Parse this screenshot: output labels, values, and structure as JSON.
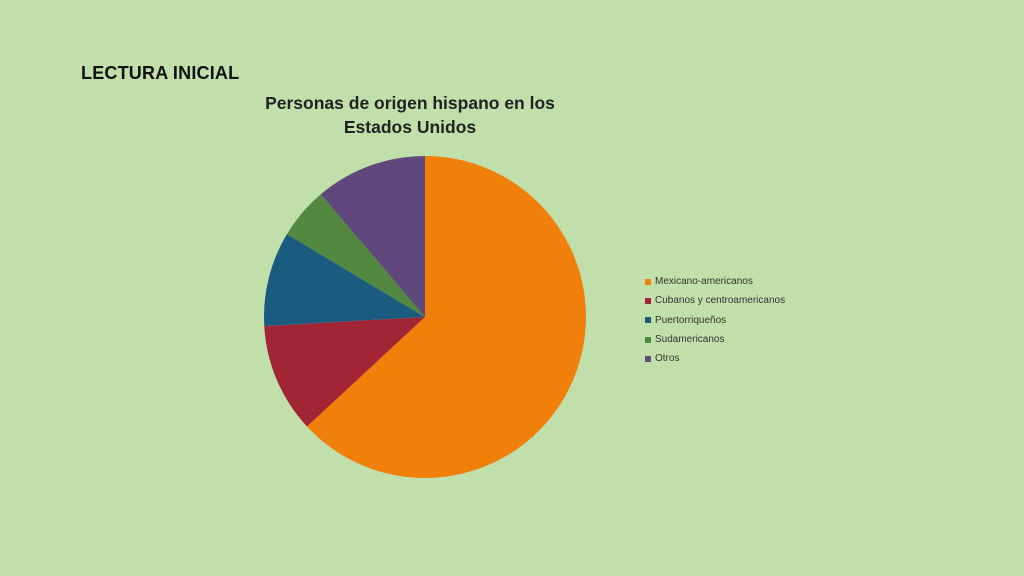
{
  "slide": {
    "heading": "LECTURA INICIAL"
  },
  "chart_data": {
    "type": "pie",
    "title": "Personas de origen hispano en los Estados Unidos",
    "title_lines": [
      "Personas de origen hispano en los",
      "Estados Unidos"
    ],
    "legend_position": "right",
    "start_angle": "12 o'clock",
    "direction": "clockwise",
    "categories": [
      "Mexicano-americanos",
      "Cubanos y centroamericanos",
      "Puertorriqueños",
      "Sudamericanos",
      "Otros"
    ],
    "values": [
      63.1,
      11.0,
      9.5,
      5.2,
      11.2
    ],
    "unit": "%",
    "colors": [
      "#f0800a",
      "#a22536",
      "#1c5b80",
      "#52883f",
      "#60487c"
    ]
  }
}
